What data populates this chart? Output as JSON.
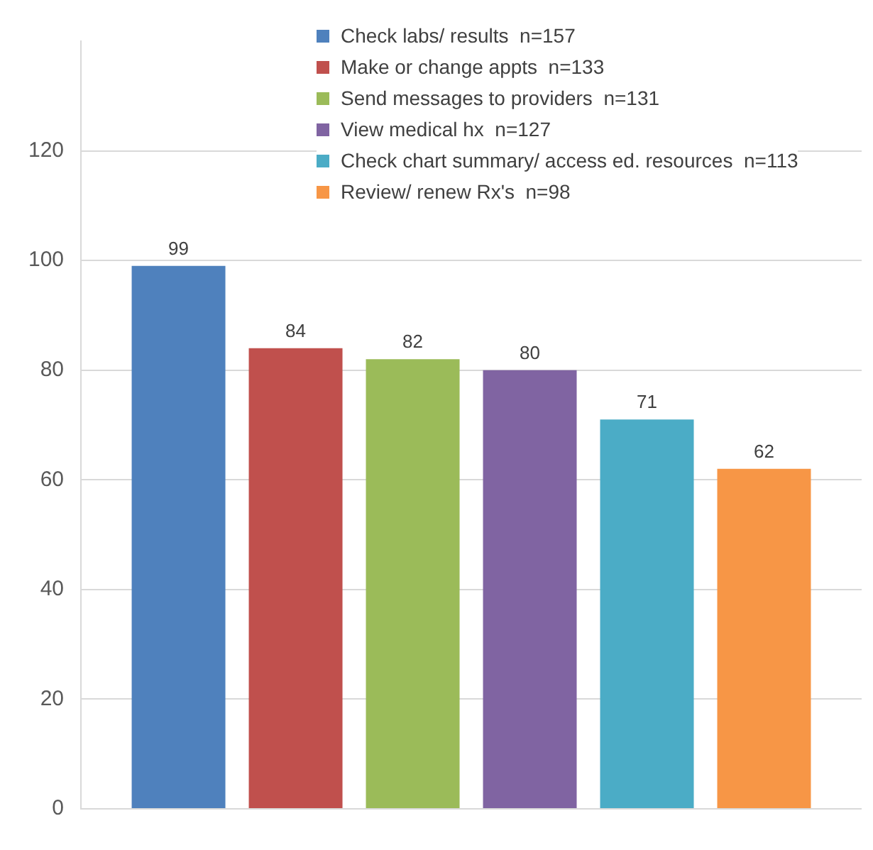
{
  "chart_data": {
    "type": "bar",
    "categories": [
      null
    ],
    "series": [
      {
        "name": "Check labs/ results  n=157",
        "color": "#4f81bd",
        "values": [
          99
        ]
      },
      {
        "name": "Make or change appts  n=133",
        "color": "#c0504d",
        "values": [
          84
        ]
      },
      {
        "name": "Send messages to providers  n=131",
        "color": "#9bbb59",
        "values": [
          82
        ]
      },
      {
        "name": "View medical hx  n=127",
        "color": "#8064a2",
        "values": [
          80
        ]
      },
      {
        "name": "Check chart summary/ access ed. resources  n=113",
        "color": "#4bacc6",
        "values": [
          71
        ]
      },
      {
        "name": "Review/ renew Rx's  n=98",
        "color": "#f79646",
        "values": [
          62
        ]
      }
    ],
    "ylim": [
      0,
      140
    ],
    "yticks": [
      0,
      20,
      40,
      60,
      80,
      100,
      120
    ],
    "grid": "y",
    "legend": "top",
    "data_labels": true
  }
}
